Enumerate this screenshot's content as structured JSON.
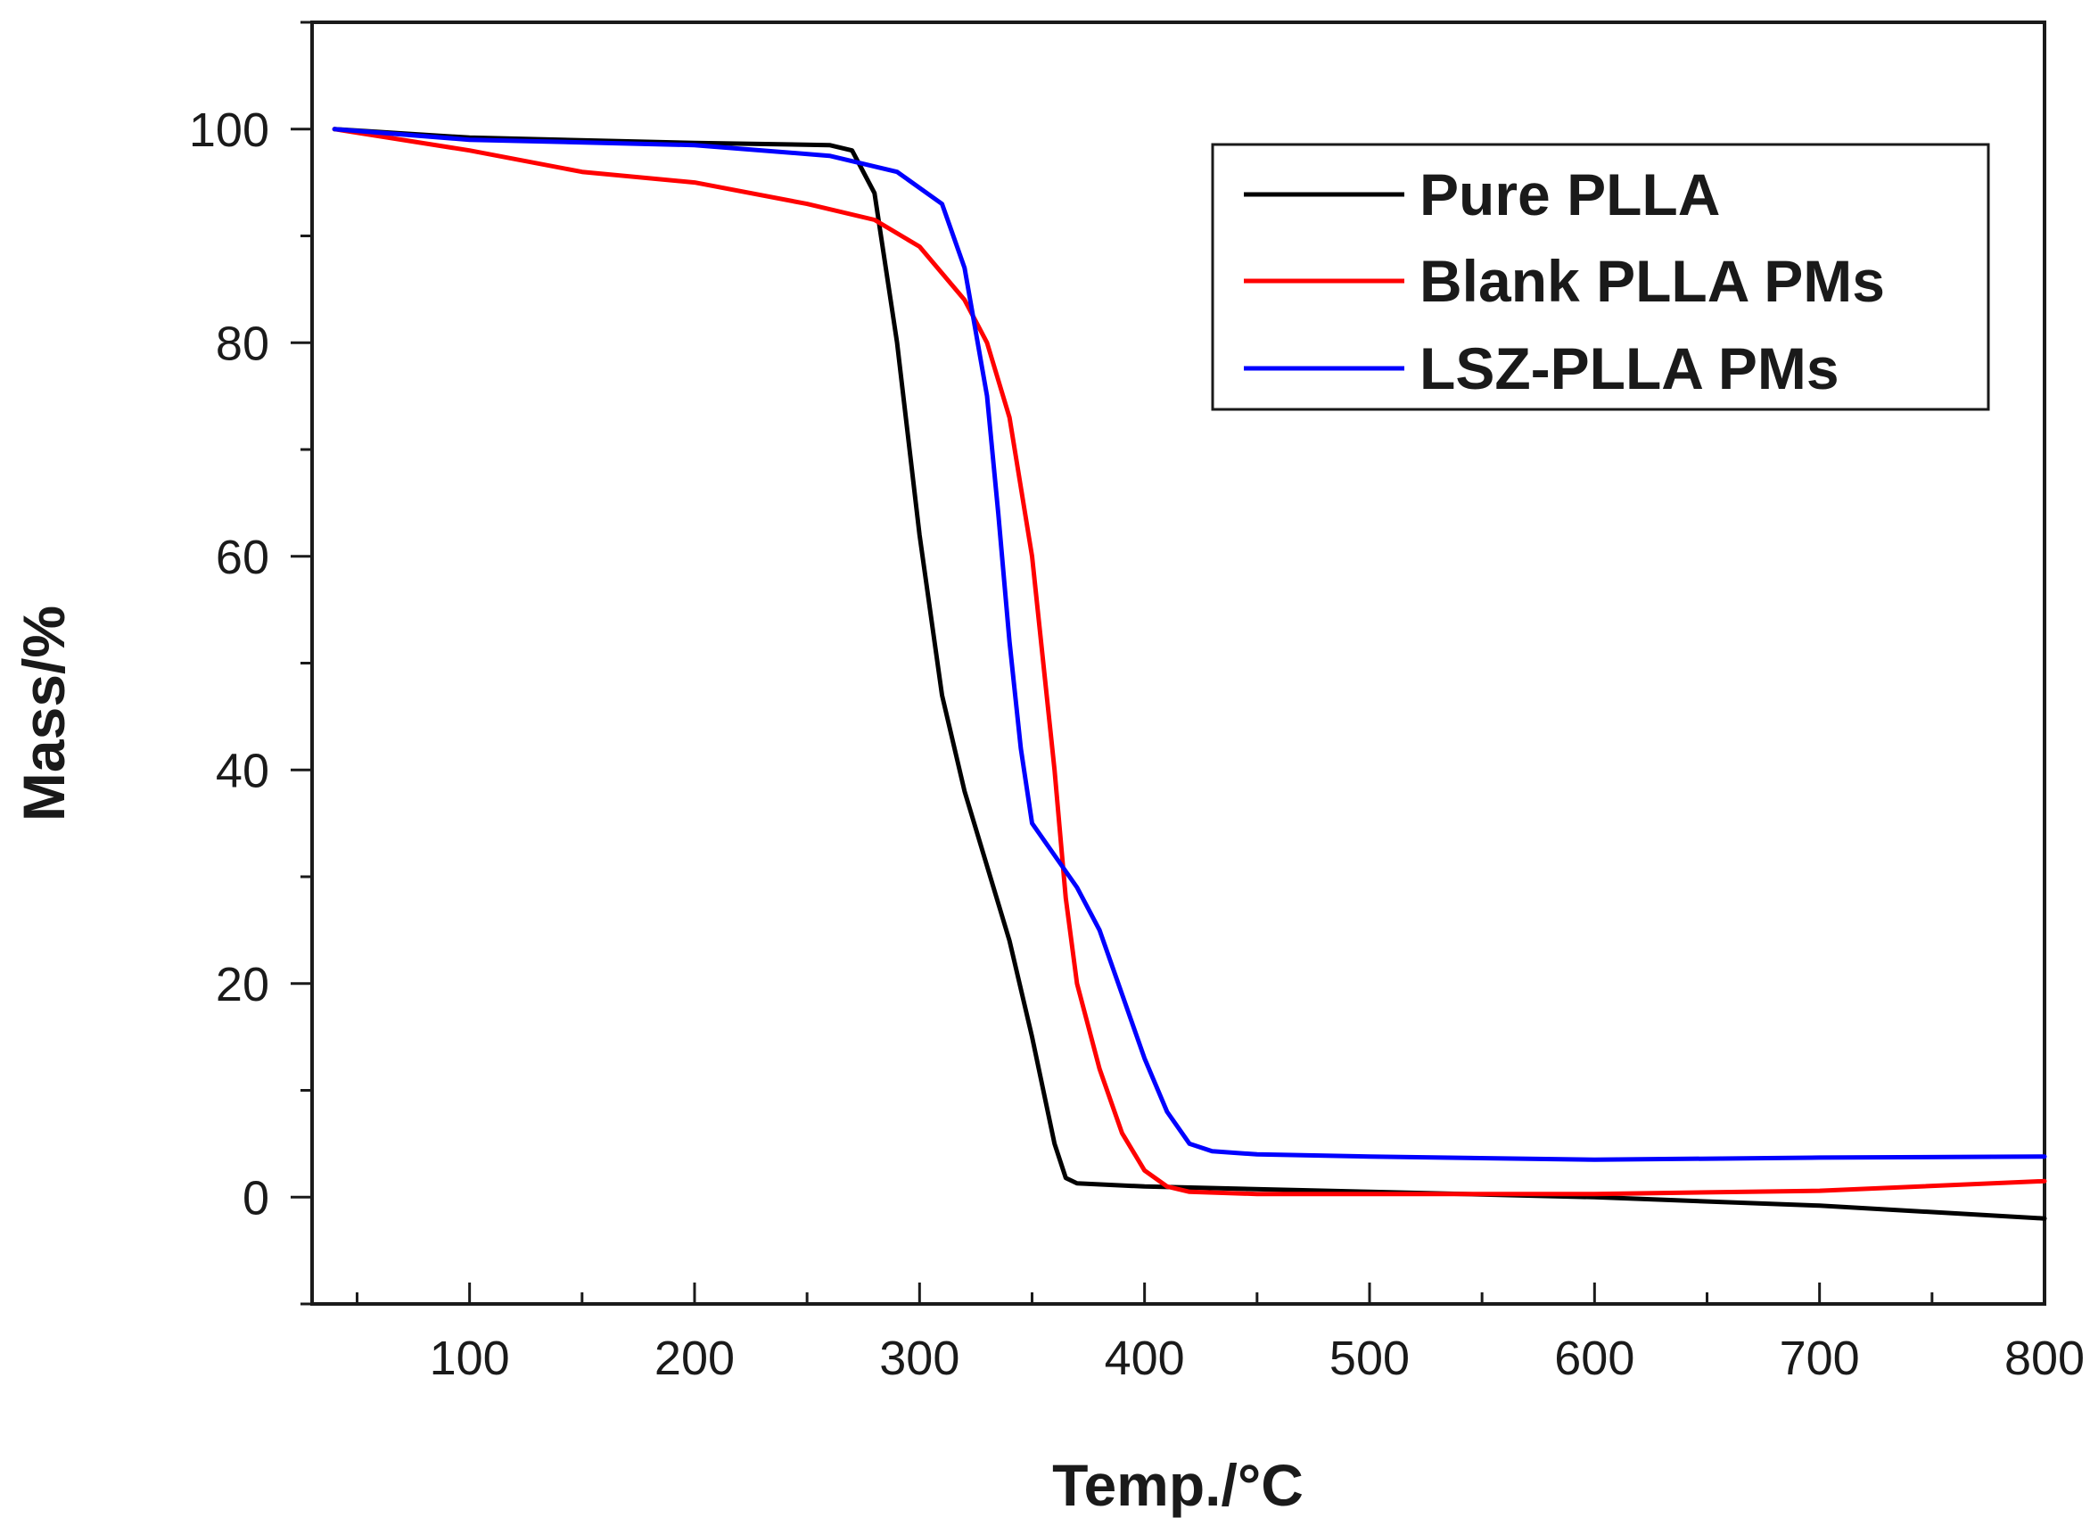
{
  "chart_data": {
    "type": "line",
    "title": "",
    "xlabel": "Temp./°C",
    "ylabel": "Mass/%",
    "xlim": [
      30,
      800
    ],
    "ylim": [
      -10,
      110
    ],
    "x_ticks": [
      100,
      200,
      300,
      400,
      500,
      600,
      700,
      800
    ],
    "x_tick_labels": [
      "100",
      "200",
      "300",
      "400",
      "500",
      "600",
      "700",
      "800"
    ],
    "y_ticks": [
      0,
      20,
      40,
      60,
      80,
      100
    ],
    "y_tick_labels": [
      "0",
      "20",
      "40",
      "60",
      "80",
      "100"
    ],
    "grid": false,
    "legend_position": "top-right",
    "series": [
      {
        "name": "Pure PLLA",
        "color": "#000000",
        "x": [
          40,
          100,
          200,
          260,
          270,
          280,
          290,
          300,
          310,
          320,
          330,
          340,
          350,
          360,
          365,
          370,
          400,
          500,
          600,
          700,
          800
        ],
        "y": [
          100,
          99.2,
          98.7,
          98.5,
          98,
          94,
          80,
          62,
          47,
          38,
          31,
          24,
          15,
          5,
          1.8,
          1.3,
          1.0,
          0.5,
          0,
          -0.8,
          -2
        ]
      },
      {
        "name": "Blank PLLA PMs",
        "color": "#ff0000",
        "x": [
          40,
          100,
          150,
          200,
          250,
          280,
          300,
          320,
          330,
          340,
          350,
          360,
          365,
          370,
          380,
          390,
          400,
          410,
          420,
          450,
          500,
          600,
          700,
          800
        ],
        "y": [
          100,
          98,
          96,
          95,
          93,
          91.5,
          89,
          84,
          80,
          73,
          60,
          40,
          28,
          20,
          12,
          6,
          2.5,
          1,
          0.5,
          0.3,
          0.3,
          0.3,
          0.6,
          1.5
        ]
      },
      {
        "name": "LSZ-PLLA PMs",
        "color": "#0000ff",
        "x": [
          40,
          100,
          200,
          260,
          290,
          310,
          320,
          330,
          335,
          340,
          345,
          350,
          360,
          370,
          380,
          390,
          400,
          410,
          420,
          430,
          450,
          500,
          600,
          700,
          800
        ],
        "y": [
          100,
          99,
          98.5,
          97.5,
          96,
          93,
          87,
          75,
          64,
          52,
          42,
          35,
          32,
          29,
          25,
          19,
          13,
          8,
          5,
          4.3,
          4,
          3.8,
          3.5,
          3.7,
          3.8
        ]
      }
    ]
  }
}
